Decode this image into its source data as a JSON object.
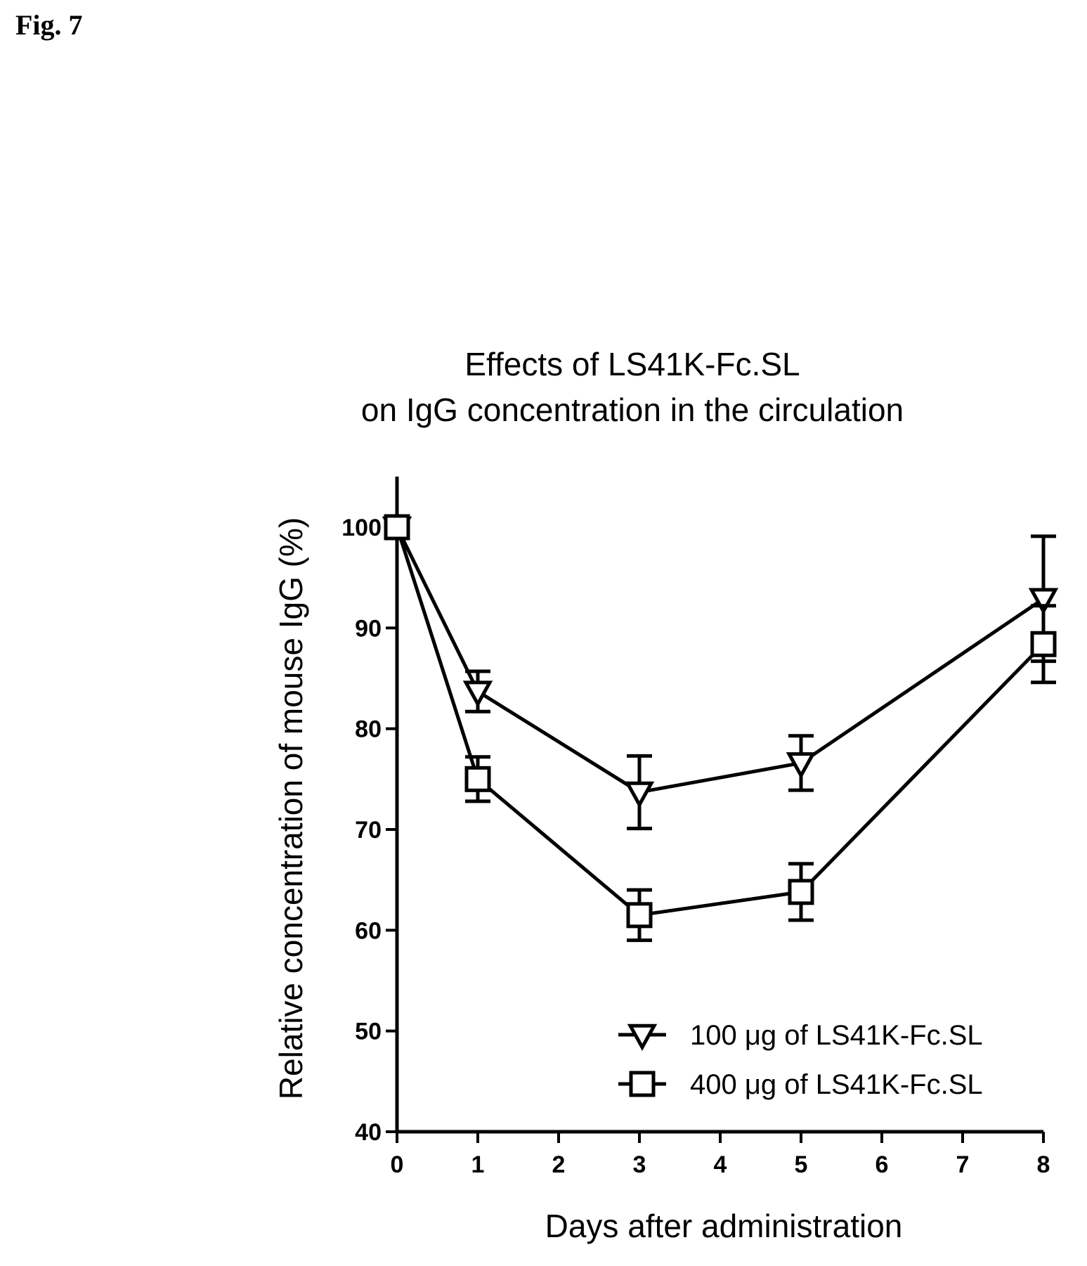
{
  "figure_label": "Fig. 7",
  "chart_data": {
    "type": "line",
    "title": [
      "Effects of LS41K-Fc.SL",
      "on IgG concentration in the circulation"
    ],
    "xlabel": "Days after administration",
    "ylabel": "Relative concentration of mouse IgG (%)",
    "xlim": [
      0,
      8
    ],
    "ylim": [
      40,
      100
    ],
    "x_ticks": [
      0,
      1,
      2,
      3,
      4,
      5,
      6,
      7,
      8
    ],
    "y_ticks": [
      40,
      50,
      60,
      70,
      80,
      90,
      100
    ],
    "grid": false,
    "legend_position": "bottom-right",
    "x": [
      0,
      1,
      3,
      5,
      8
    ],
    "series": [
      {
        "name": "100 μg of LS41K-Fc.SL",
        "marker": "triangle-down",
        "values": [
          100,
          83.7,
          73.7,
          76.6,
          92.9
        ],
        "error": [
          0,
          2.0,
          3.6,
          2.7,
          6.2
        ]
      },
      {
        "name": "400 μg of LS41K-Fc.SL",
        "marker": "square",
        "values": [
          100,
          75.0,
          61.5,
          63.8,
          88.4
        ],
        "error": [
          0,
          2.2,
          2.5,
          2.8,
          3.8
        ]
      }
    ]
  }
}
